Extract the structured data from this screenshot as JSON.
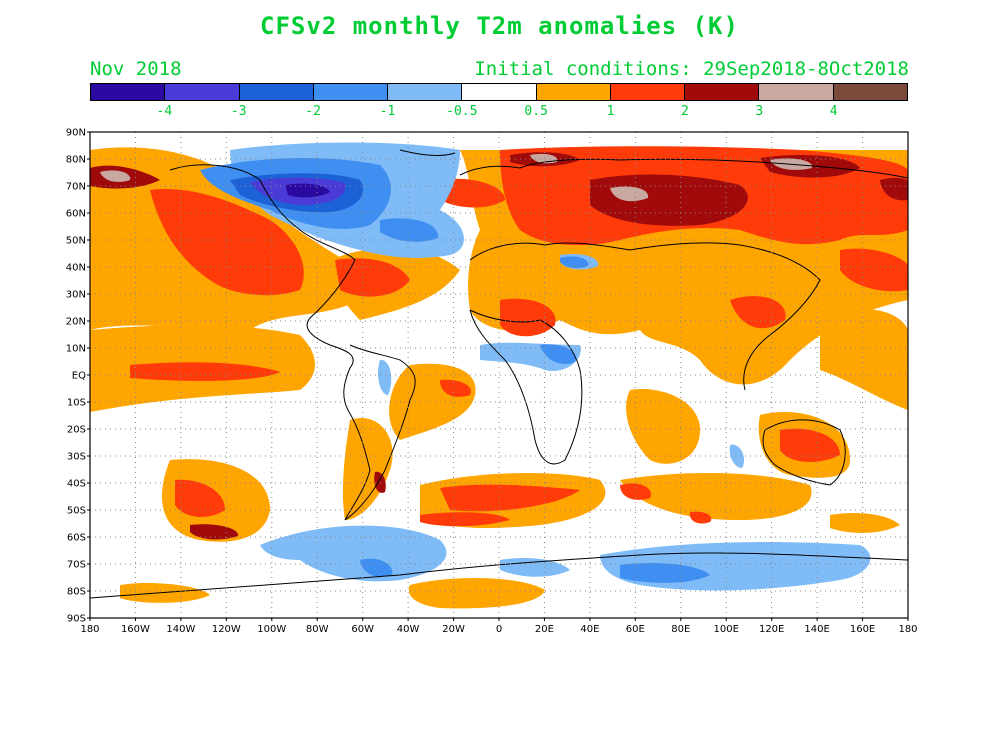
{
  "title": "CFSv2 monthly T2m anomalies (K)",
  "valid_month": "Nov 2018",
  "initial_conditions": "Initial conditions: 29Sep2018-8Oct2018",
  "colorbar": {
    "colors": [
      "#2a0aa0",
      "#4a3bd6",
      "#1c62d6",
      "#3f8ff2",
      "#7fbcf7",
      "#ffffff",
      "#ffa500",
      "#ff3b0a",
      "#a00a0a",
      "#c8a8a0",
      "#7a4a3a"
    ],
    "labels": [
      "-4",
      "-3",
      "-2",
      "-1",
      "-0.5",
      "0.5",
      "1",
      "2",
      "3",
      "4"
    ]
  },
  "lat_labels": [
    "90N",
    "80N",
    "70N",
    "60N",
    "50N",
    "40N",
    "30N",
    "20N",
    "10N",
    "EQ",
    "10S",
    "20S",
    "30S",
    "40S",
    "50S",
    "60S",
    "70S",
    "80S",
    "90S"
  ],
  "lon_labels": [
    "180",
    "160W",
    "140W",
    "120W",
    "100W",
    "80W",
    "60W",
    "40W",
    "20W",
    "0",
    "20E",
    "40E",
    "60E",
    "80E",
    "100E",
    "120E",
    "140E",
    "160E",
    "180"
  ]
}
